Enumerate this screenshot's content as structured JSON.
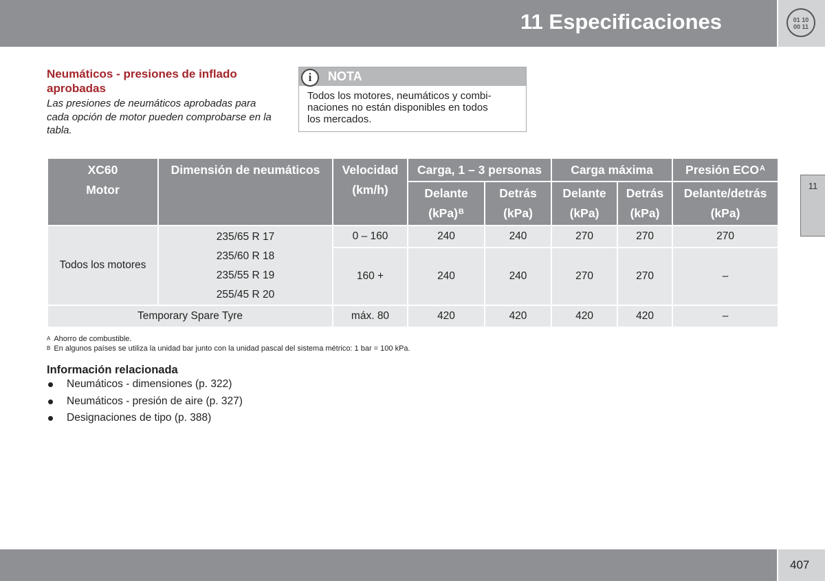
{
  "header": {
    "title": "11 Especificaciones",
    "icon": "chapter-icon",
    "icon_text_line1": "01 10",
    "icon_text_line2": "00 11"
  },
  "side_tab": {
    "label": "11"
  },
  "section": {
    "title": "Neumáticos - presiones de inflado aprobadas",
    "intro": "Las presiones de neumáticos aprobadas para cada opción de motor pueden comprobarse en la tabla."
  },
  "note": {
    "label": "NOTA",
    "icon": "info-icon",
    "icon_glyph": "i",
    "text": "Todos los motores, neumáticos y combi­naciones no están disponibles en todos los mercados."
  },
  "table": {
    "headers": {
      "model": "XC60",
      "engine": "Motor",
      "tire_size": "Dimensión de neumáticos",
      "speed": "Velocidad",
      "speed_unit": "(km/h)",
      "load_normal": "Carga, 1 – 3 personas",
      "load_max": "Carga máxima",
      "eco": "Presión ECO",
      "eco_sup": "A",
      "front": "Delante",
      "rear": "Detrás",
      "front_rear": "Delante/detrás",
      "unit": "(kPa)",
      "unit_sup": "B"
    },
    "rows": {
      "engine": "Todos los motores",
      "sizes": [
        "235/65 R 17",
        "235/60 R 18",
        "235/55 R 19",
        "255/45 R 20"
      ],
      "speed_row1": {
        "speed": "0 – 160",
        "values": [
          "240",
          "240",
          "270",
          "270",
          "270"
        ]
      },
      "speed_row2": {
        "speed": "160 +",
        "values": [
          "240",
          "240",
          "270",
          "270",
          "–"
        ]
      },
      "spare": {
        "label": "Temporary Spare Tyre",
        "speed": "máx. 80",
        "values": [
          "420",
          "420",
          "420",
          "420",
          "–"
        ]
      }
    }
  },
  "footnotes": [
    {
      "key": "A",
      "text": "Ahorro de combustible."
    },
    {
      "key": "B",
      "text": "En algunos países se utiliza la unidad bar junto con la unidad pascal del sistema métrico: 1 bar = 100 kPa."
    }
  ],
  "related": {
    "title": "Información relacionada",
    "items": [
      "Neumáticos - dimensiones (p. 322)",
      "Neumáticos - presión de aire (p. 327)",
      "Designaciones de tipo (p. 388)"
    ]
  },
  "footer": {
    "page_number": "407"
  },
  "colors": {
    "bar_gray": "#8e9094",
    "tab_gray": "#d2d3d5",
    "cell_gray": "#e6e7e8",
    "title_red": "#a3262b"
  }
}
